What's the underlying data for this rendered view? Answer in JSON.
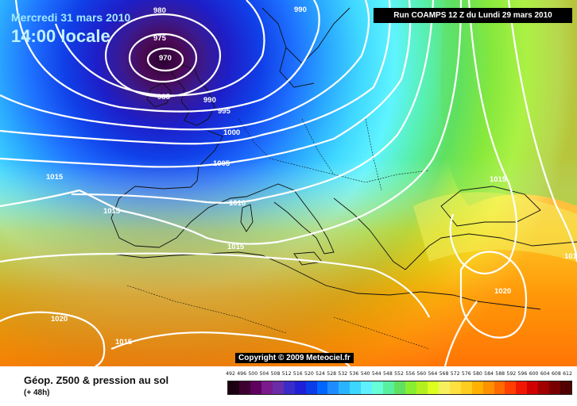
{
  "map": {
    "date_text": "Mercredi 31 mars 2010",
    "time_text": "14:00 locale",
    "run_text": "Run COAMPS 12 Z du Lundi 29 mars 2010",
    "copyright_text": "Copyright © 2009 Meteociel.fr",
    "isobar_labels": [
      "980",
      "975",
      "970",
      "985",
      "990",
      "990",
      "995",
      "1000",
      "1005",
      "1010",
      "1015",
      "1015",
      "1015",
      "1015",
      "1020",
      "1015",
      "1015",
      "1020",
      "1015"
    ]
  },
  "legend": {
    "title": "Géop. Z500 & pression au sol",
    "subtitle": "(+ 48h)",
    "scale_values": [
      "492",
      "496",
      "500",
      "504",
      "508",
      "512",
      "516",
      "520",
      "524",
      "528",
      "532",
      "536",
      "540",
      "544",
      "548",
      "552",
      "556",
      "560",
      "564",
      "568",
      "572",
      "576",
      "580",
      "584",
      "588",
      "592",
      "596",
      "600",
      "604",
      "608",
      "612"
    ],
    "scale_colors": [
      "#1a0010",
      "#3d0030",
      "#5e005e",
      "#7a1a8c",
      "#6a2ca8",
      "#3a2cc8",
      "#1e20d8",
      "#0a3ce8",
      "#0066ff",
      "#1e8cff",
      "#2ab4ff",
      "#3cd6ff",
      "#5ff0ff",
      "#66ffd8",
      "#58f0a0",
      "#60e060",
      "#88ee30",
      "#b4f020",
      "#dcff20",
      "#f4f060",
      "#ffe040",
      "#ffcc20",
      "#ffb000",
      "#ff9000",
      "#ff6a00",
      "#ff4000",
      "#f01800",
      "#d00000",
      "#a00000",
      "#780000",
      "#500000"
    ]
  },
  "colors": {
    "run_box_bg": "#000000",
    "isobar": "#ffffff",
    "coast": "#111111"
  }
}
